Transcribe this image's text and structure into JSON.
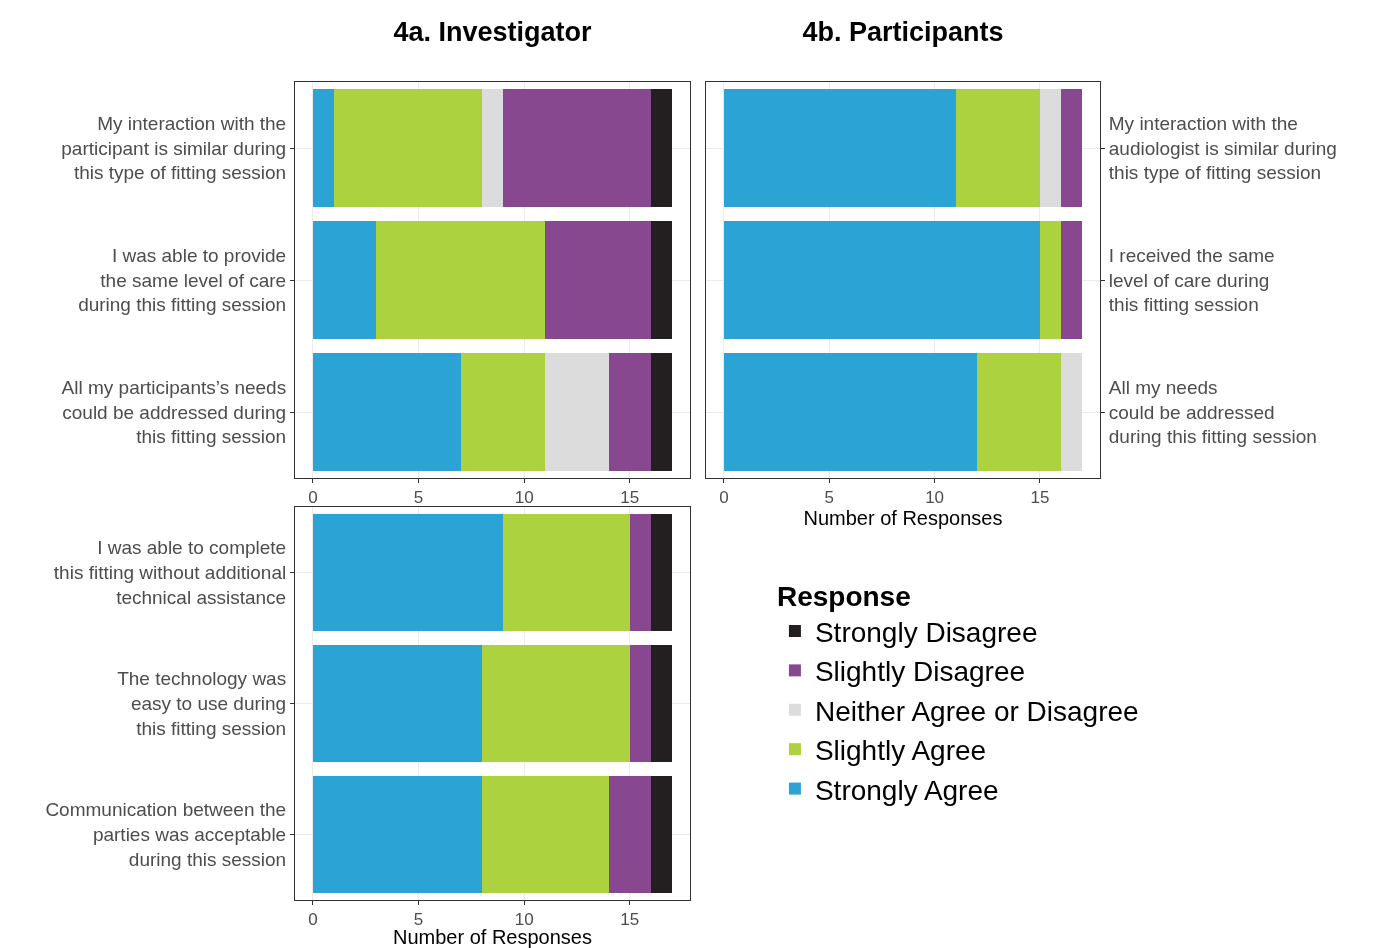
{
  "chart_data": [
    {
      "type": "bar",
      "title": "4a. Investigator",
      "orientation": "horizontal",
      "stacked": true,
      "grid": true,
      "legend": false,
      "categories": [
        "My interaction with the\nparticipant is similar during\nthis type of fitting session",
        "I was able to provide\nthe same level of care\nduring this fitting session",
        "All my participants’s needs\ncould be addressed during\nthis fitting session"
      ],
      "xlim": [
        -0.85,
        17.85
      ],
      "xticks": [
        0,
        5,
        10,
        15
      ],
      "series": [
        {
          "color": "#2ba3d5",
          "values": [
            1,
            3,
            7
          ]
        },
        {
          "color": "#add23f",
          "values": [
            7,
            8,
            4
          ]
        },
        {
          "color": "#dcdcdd",
          "values": [
            1,
            0,
            3
          ]
        },
        {
          "color": "#88488f",
          "values": [
            7,
            5,
            2
          ]
        },
        {
          "color": "#231f20",
          "values": [
            1,
            1,
            1
          ]
        }
      ]
    },
    {
      "type": "bar",
      "title": "4b. Participants",
      "xlabel": "Number of Responses",
      "orientation": "horizontal",
      "stacked": true,
      "grid": true,
      "legend": false,
      "categories": [
        "My interaction with the\naudiologist is similar during\nthis type of fitting session",
        "I received the same\nlevel of care during\nthis fitting session",
        "All my needs\ncould be addressed\nduring this fitting session"
      ],
      "xlim": [
        -0.85,
        17.85
      ],
      "xticks": [
        0,
        5,
        10,
        15
      ],
      "series": [
        {
          "color": "#2ba3d5",
          "values": [
            11,
            15,
            12
          ]
        },
        {
          "color": "#add23f",
          "values": [
            4,
            1,
            4
          ]
        },
        {
          "color": "#dcdcdd",
          "values": [
            1,
            0,
            1
          ]
        },
        {
          "color": "#88488f",
          "values": [
            1,
            1,
            0
          ]
        },
        {
          "color": "#231f20",
          "values": [
            0,
            0,
            0
          ]
        }
      ]
    },
    {
      "type": "bar",
      "xlabel": "Number of Responses",
      "orientation": "horizontal",
      "stacked": true,
      "grid": true,
      "legend": "right",
      "legend_title": "Response",
      "categories": [
        "I was able to complete\nthis fitting without additional\ntechnical assistance",
        "The technology was\neasy to use during\nthis fitting session",
        "Communication between the\nparties was acceptable\nduring this session"
      ],
      "xlim": [
        -0.85,
        17.85
      ],
      "xticks": [
        0,
        5,
        10,
        15
      ],
      "series": [
        {
          "name": "Strongly Agree",
          "color": "#2ba3d5",
          "values": [
            9,
            8,
            8
          ]
        },
        {
          "name": "Slightly Agree",
          "color": "#add23f",
          "values": [
            6,
            7,
            6
          ]
        },
        {
          "name": "Neither Agree or Disagree",
          "color": "#dcdcdd",
          "values": [
            0,
            0,
            0
          ]
        },
        {
          "name": "Slightly Disagree",
          "color": "#88488f",
          "values": [
            1,
            1,
            2
          ]
        },
        {
          "name": "Strongly Disagree",
          "color": "#231f20",
          "values": [
            1,
            1,
            1
          ]
        }
      ]
    }
  ]
}
